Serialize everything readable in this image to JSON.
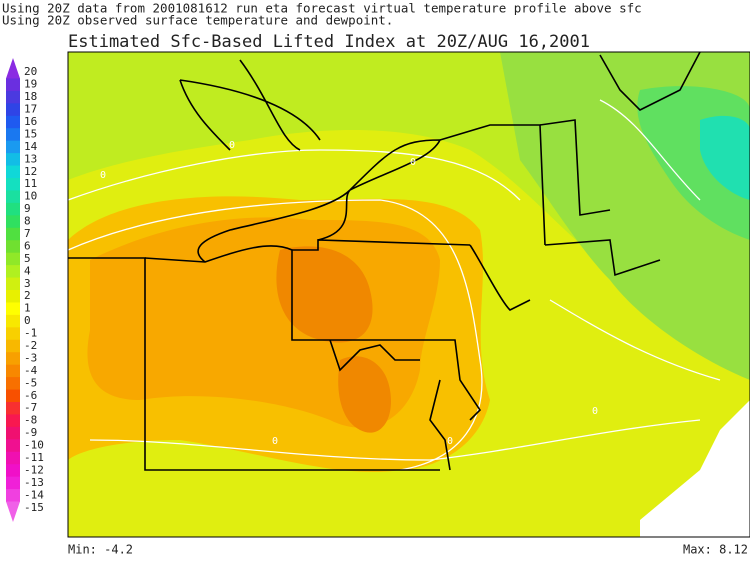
{
  "header": {
    "line1": "Using 20Z data from 2001081612 run eta forecast virtual temperature profile above sfc",
    "line2": "Using 20Z observed surface temperature and dewpoint.",
    "title": "Estimated Sfc-Based Lifted Index at 20Z/AUG 16,2001"
  },
  "colorbar": {
    "labels": [
      20,
      19,
      18,
      17,
      16,
      15,
      14,
      13,
      12,
      11,
      10,
      9,
      8,
      7,
      6,
      5,
      4,
      3,
      2,
      1,
      0,
      -1,
      -2,
      -3,
      -4,
      -5,
      -6,
      -7,
      -8,
      -9,
      -10,
      -11,
      -12,
      -13,
      -14,
      -15
    ],
    "colors": [
      "#8a2be2",
      "#6a2fe0",
      "#4b3ae0",
      "#2f44e6",
      "#1f5af0",
      "#1a78f0",
      "#1a9af0",
      "#12bde6",
      "#10d8d8",
      "#14e0c0",
      "#1ae0a0",
      "#20e080",
      "#30e060",
      "#50e040",
      "#70e030",
      "#90e828",
      "#b0f020",
      "#d0f010",
      "#e8f000",
      "#ffff00",
      "#f8e800",
      "#f8d000",
      "#f8b800",
      "#f8a000",
      "#f88800",
      "#f87000",
      "#f85000",
      "#f83030",
      "#f81850",
      "#f01070",
      "#f01090",
      "#f010b0",
      "#f010c8",
      "#f020d8",
      "#f040e0",
      "#f060e8"
    ]
  },
  "map": {
    "contour_labels": [
      "0",
      "0",
      "0",
      "0",
      "0",
      "0"
    ]
  },
  "footer": {
    "min": "Min: -4.2",
    "max": "Max: 8.12"
  }
}
